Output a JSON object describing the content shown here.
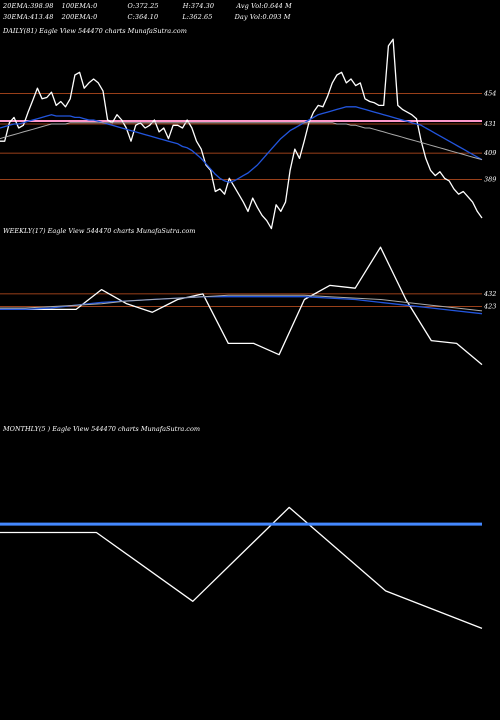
{
  "header": {
    "row1": [
      {
        "label": "20EMA:",
        "value": "398.98"
      },
      {
        "label": "100EMA:",
        "value": "0"
      },
      {
        "label": "O:",
        "value": "372.25"
      },
      {
        "label": "H:",
        "value": "374.30"
      },
      {
        "label": "Avg Vol:",
        "value": "0.644 M"
      }
    ],
    "row2": [
      {
        "label": "30EMA:",
        "value": "413.48"
      },
      {
        "label": "200EMA:",
        "value": "0"
      },
      {
        "label": "C:",
        "value": "364.10"
      },
      {
        "label": "L:",
        "value": "362.65"
      },
      {
        "label": "Day Vol:",
        "value": "0.093 M"
      }
    ]
  },
  "colors": {
    "price": "#ffffff",
    "ema_fast": "#2255dd",
    "ema_slow": "#aaaaaa",
    "level": "#cc5522",
    "pink": "#ff99cc",
    "blue_flat": "#4488ff"
  },
  "chart_data": [
    {
      "type": "line",
      "title": "DAILY(81) Eagle  View  544470  charts MunafaSutra.com",
      "yticks": [
        454,
        431,
        409,
        389
      ],
      "ylim": [
        360,
        505
      ],
      "levels": [
        454,
        431,
        409,
        389
      ],
      "series": [
        {
          "role": "price",
          "values": [
            418,
            418,
            432,
            436,
            428,
            430,
            440,
            449,
            458,
            450,
            451,
            455,
            445,
            448,
            444,
            450,
            468,
            470,
            458,
            462,
            465,
            462,
            456,
            434,
            432,
            438,
            434,
            428,
            418,
            430,
            432,
            428,
            430,
            434,
            425,
            428,
            420,
            430,
            430,
            428,
            434,
            428,
            418,
            412,
            400,
            396,
            380,
            382,
            378,
            390,
            384,
            378,
            372,
            365,
            375,
            368,
            362,
            358,
            352,
            370,
            365,
            372,
            396,
            412,
            405,
            418,
            432,
            440,
            445,
            444,
            452,
            462,
            468,
            470,
            462,
            465,
            460,
            462,
            450,
            448,
            447,
            445,
            445,
            490,
            495,
            445,
            442,
            440,
            438,
            435,
            418,
            405,
            396,
            392,
            395,
            390,
            388,
            382,
            378,
            380,
            376,
            372,
            365,
            360
          ]
        },
        {
          "role": "ema_fast",
          "values": [
            428,
            429,
            430,
            431,
            431,
            432,
            433,
            434,
            435,
            436,
            437,
            438,
            437,
            437,
            437,
            437,
            436,
            436,
            435,
            434,
            434,
            433,
            432,
            431,
            430,
            429,
            428,
            427,
            426,
            425,
            424,
            423,
            422,
            421,
            420,
            419,
            418,
            417,
            416,
            414,
            413,
            411,
            408,
            405,
            401,
            397,
            393,
            390,
            388,
            387,
            388,
            390,
            392,
            394,
            397,
            400,
            404,
            408,
            412,
            416,
            420,
            423,
            426,
            428,
            430,
            432,
            434,
            436,
            438,
            439,
            440,
            441,
            442,
            443,
            444,
            444,
            444,
            443,
            442,
            441,
            440,
            439,
            438,
            437,
            436,
            435,
            434,
            433,
            432,
            431,
            430,
            428,
            426,
            424,
            422,
            420,
            418,
            416,
            414,
            412,
            410,
            408,
            406,
            404
          ]
        },
        {
          "role": "ema_slow",
          "values": [
            420,
            421,
            422,
            423,
            424,
            425,
            426,
            427,
            428,
            429,
            430,
            431,
            431,
            431,
            431,
            432,
            432,
            432,
            432,
            432,
            432,
            432,
            432,
            432,
            432,
            432,
            432,
            432,
            432,
            432,
            432,
            432,
            432,
            432,
            432,
            432,
            432,
            432,
            432,
            432,
            432,
            432,
            432,
            432,
            432,
            432,
            432,
            432,
            432,
            432,
            432,
            432,
            432,
            432,
            432,
            432,
            432,
            432,
            432,
            432,
            432,
            432,
            432,
            432,
            432,
            432,
            432,
            432,
            432,
            432,
            432,
            432,
            431,
            431,
            431,
            430,
            430,
            429,
            428,
            428,
            427,
            426,
            425,
            424,
            423,
            422,
            421,
            420,
            419,
            418,
            417,
            416,
            415,
            414,
            413,
            412,
            411,
            410,
            409,
            408,
            407,
            406,
            405,
            404
          ]
        }
      ]
    },
    {
      "type": "line",
      "title": "WEEKLY(17) Eagle  View  544470  charts MunafaSutra.com",
      "yticks": [
        432,
        423
      ],
      "ylim": [
        340,
        480
      ],
      "levels": [
        432,
        423
      ],
      "series": [
        {
          "role": "price",
          "values": [
            421,
            421,
            421,
            421,
            435,
            425,
            419,
            428,
            432,
            397,
            397,
            389,
            428,
            438,
            436,
            465,
            428,
            399,
            397,
            382
          ]
        },
        {
          "role": "ema_fast",
          "values": [
            421,
            421,
            422,
            424,
            426,
            427,
            428,
            429,
            430,
            430,
            430,
            430,
            430,
            429,
            428,
            426,
            424,
            422,
            420,
            418
          ]
        },
        {
          "role": "ema_slow",
          "values": [
            422,
            422,
            423,
            424,
            425,
            427,
            428,
            429,
            430,
            431,
            431,
            431,
            431,
            430,
            429,
            428,
            426,
            424,
            422,
            420
          ]
        }
      ]
    },
    {
      "type": "line",
      "title": "MONTHLY(5                         ) Eagle  View  544470  charts MunafaSutra.com",
      "yticks": [],
      "ylim": [
        340,
        480
      ],
      "levels": [],
      "series": [
        {
          "role": "price",
          "values": [
            428,
            428,
            395,
            440,
            400,
            382
          ]
        },
        {
          "role": "flat",
          "values": [
            432,
            432,
            432,
            432,
            432,
            432
          ]
        }
      ]
    }
  ]
}
